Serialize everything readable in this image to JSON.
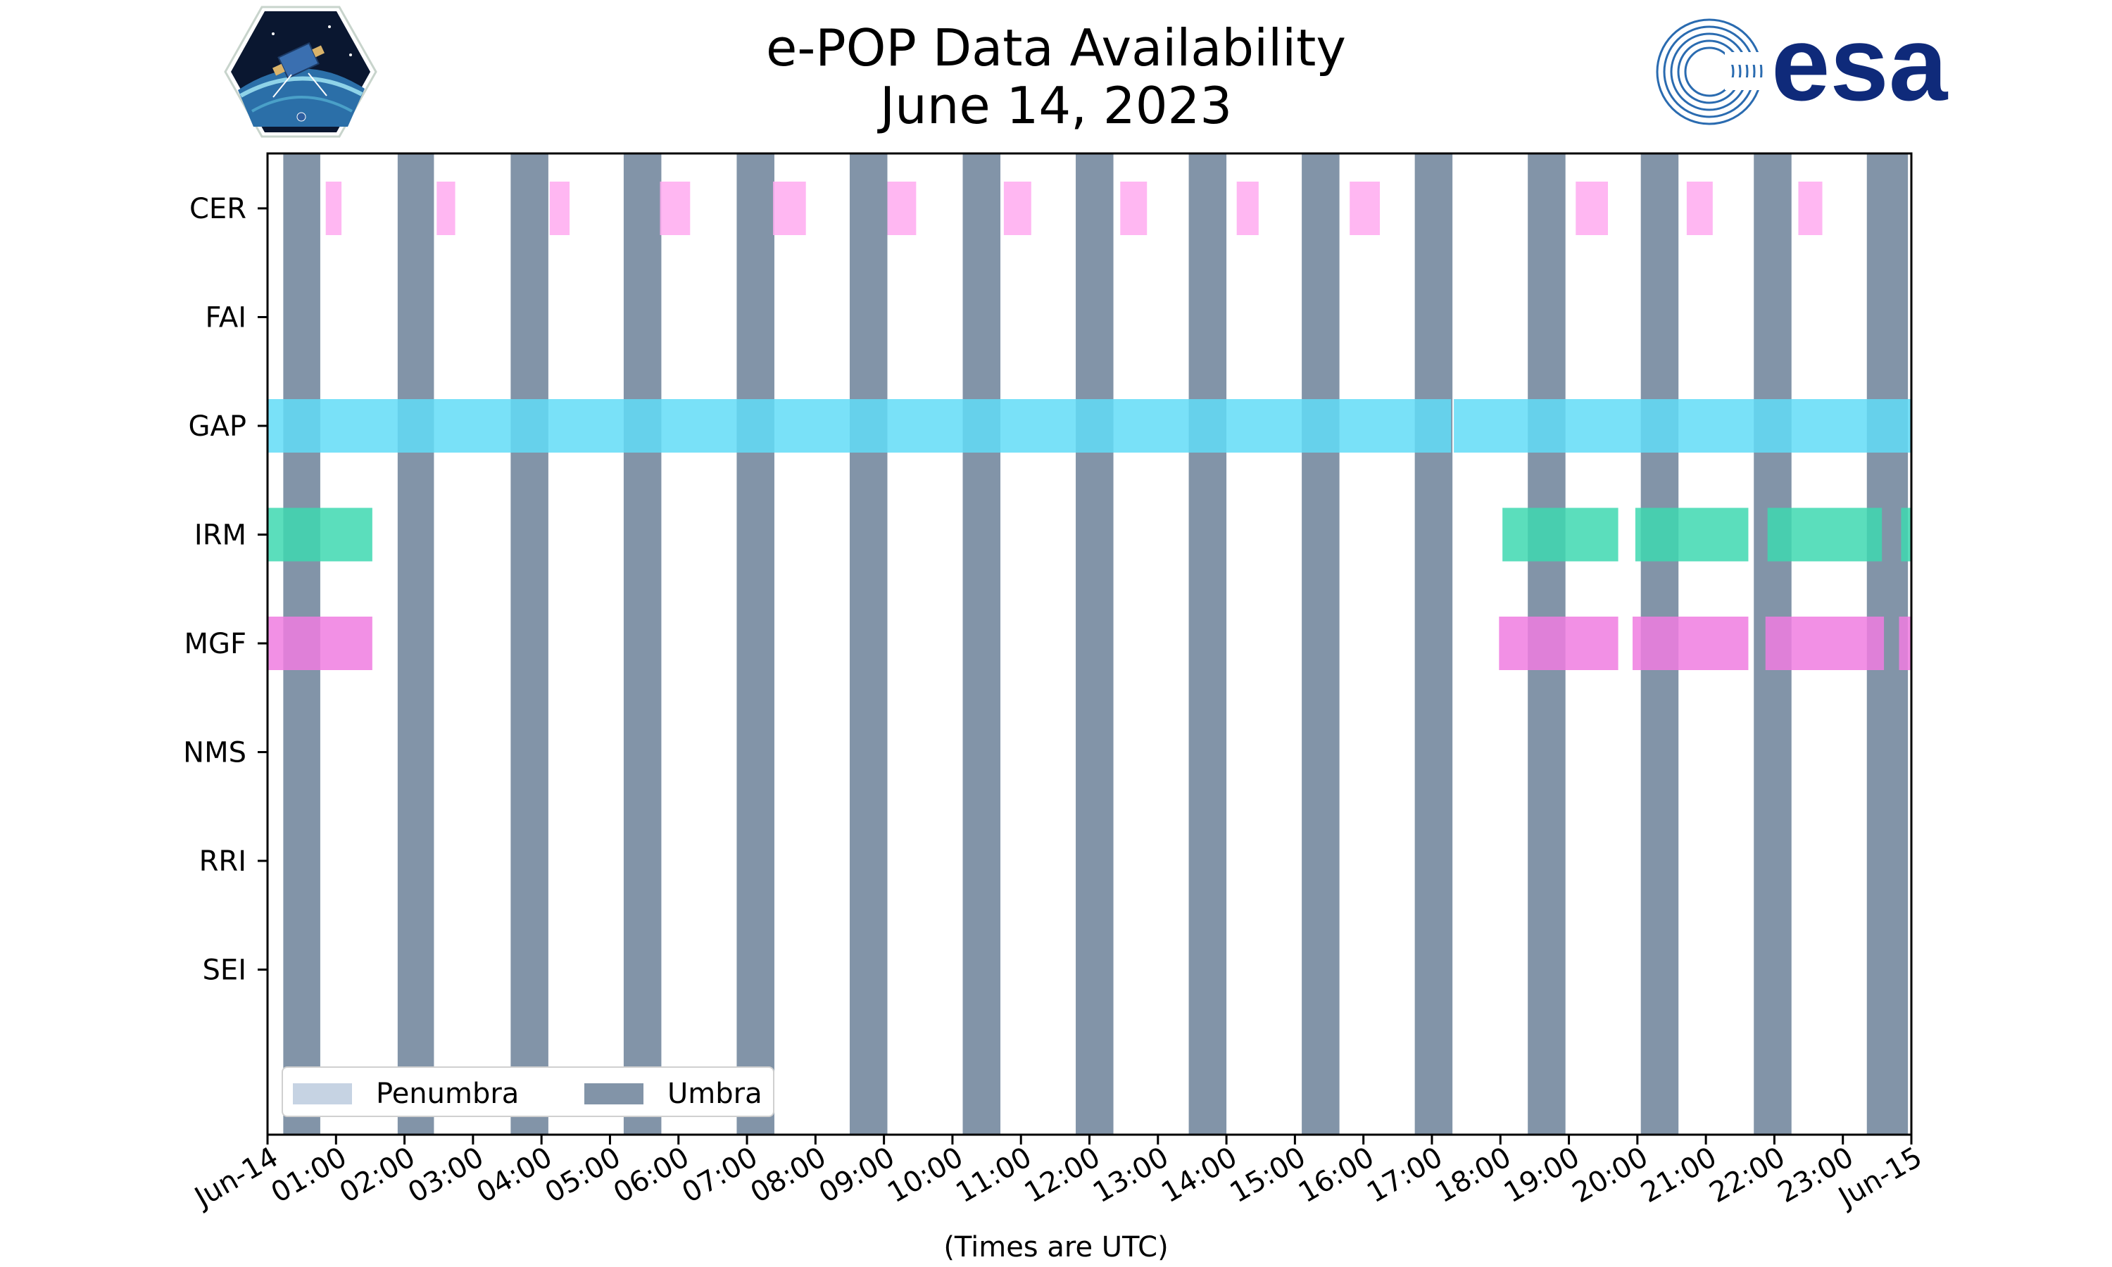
{
  "title": "e-POP Data Availability",
  "subtitle": "June 14, 2023",
  "logos": {
    "left": "CASSIOPE",
    "right": "esa"
  },
  "chart_data": {
    "type": "timeline",
    "xlabel": "(Times are UTC)",
    "x_range_hours": [
      0,
      24
    ],
    "x_ticks": [
      "Jun-14",
      "01:00",
      "02:00",
      "03:00",
      "04:00",
      "05:00",
      "06:00",
      "07:00",
      "08:00",
      "09:00",
      "10:00",
      "11:00",
      "12:00",
      "13:00",
      "14:00",
      "15:00",
      "16:00",
      "17:00",
      "18:00",
      "19:00",
      "20:00",
      "21:00",
      "22:00",
      "23:00",
      "Jun-15"
    ],
    "instruments": [
      "CER",
      "FAI",
      "GAP",
      "IRM",
      "MGF",
      "NMS",
      "RRI",
      "SEI"
    ],
    "colors": {
      "CER": "#ffaaf0",
      "GAP": "#62dcf7",
      "IRM": "#3ed8b0",
      "MGF": "#f07ce0",
      "umbra": "#8294a8",
      "penumbra": "#c6d3e3"
    },
    "umbra_intervals_hours": [
      [
        0.23,
        0.77
      ],
      [
        1.9,
        2.43
      ],
      [
        3.55,
        4.1
      ],
      [
        5.2,
        5.75
      ],
      [
        6.85,
        7.4
      ],
      [
        8.5,
        9.05
      ],
      [
        10.15,
        10.7
      ],
      [
        11.8,
        12.35
      ],
      [
        13.45,
        14.0
      ],
      [
        15.1,
        15.65
      ],
      [
        16.75,
        17.3
      ],
      [
        18.4,
        18.95
      ],
      [
        20.05,
        20.6
      ],
      [
        21.7,
        22.25
      ],
      [
        23.35,
        23.95
      ]
    ],
    "availability_hours": {
      "CER": [
        [
          0.85,
          1.08
        ],
        [
          2.47,
          2.74
        ],
        [
          4.12,
          4.41
        ],
        [
          5.73,
          6.17
        ],
        [
          7.38,
          7.86
        ],
        [
          9.05,
          9.47
        ],
        [
          10.75,
          11.15
        ],
        [
          12.45,
          12.84
        ],
        [
          14.15,
          14.47
        ],
        [
          15.8,
          16.24
        ],
        [
          19.1,
          19.57
        ],
        [
          20.72,
          21.1
        ],
        [
          22.35,
          22.7
        ]
      ],
      "FAI": [],
      "GAP": [
        [
          0.0,
          17.28
        ],
        [
          17.32,
          24.0
        ]
      ],
      "IRM": [
        [
          0.0,
          1.53
        ],
        [
          18.03,
          19.72
        ],
        [
          19.97,
          21.62
        ],
        [
          21.9,
          23.57
        ],
        [
          23.85,
          24.0
        ]
      ],
      "MGF": [
        [
          0.0,
          1.53
        ],
        [
          17.98,
          19.72
        ],
        [
          19.93,
          21.62
        ],
        [
          21.87,
          23.6
        ],
        [
          23.82,
          24.0
        ]
      ],
      "NMS": [],
      "RRI": [],
      "SEI": []
    },
    "legend": {
      "placement": "lower-left",
      "entries": [
        "Penumbra",
        "Umbra"
      ]
    }
  }
}
